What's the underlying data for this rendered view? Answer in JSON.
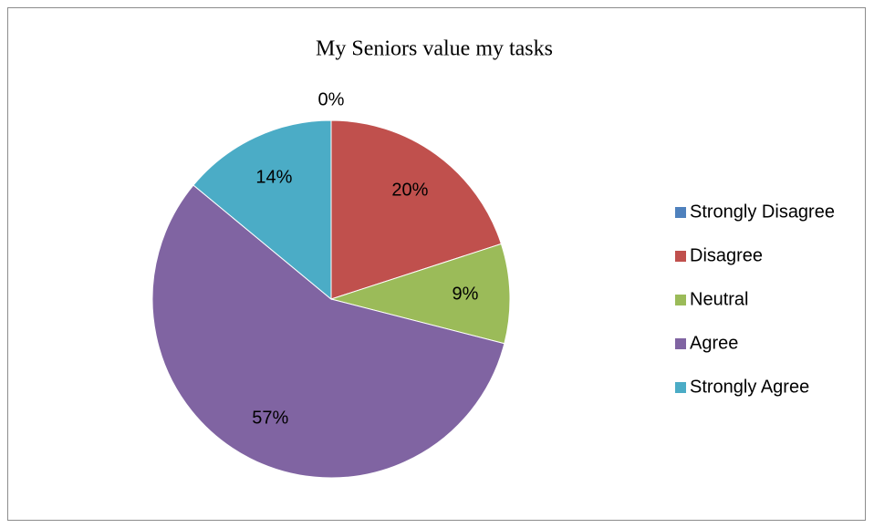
{
  "chart_data": {
    "type": "pie",
    "title": "My Seniors value my tasks",
    "categories": [
      "Strongly Disagree",
      "Disagree",
      "Neutral",
      "Agree",
      "Strongly Agree"
    ],
    "values": [
      0,
      20,
      9,
      57,
      14
    ],
    "value_labels": [
      "0%",
      "20%",
      "9%",
      "57%",
      "14%"
    ],
    "colors": [
      "#4f81bd",
      "#c0504d",
      "#9bbb59",
      "#8064a2",
      "#4bacc6"
    ],
    "legend": "right"
  }
}
